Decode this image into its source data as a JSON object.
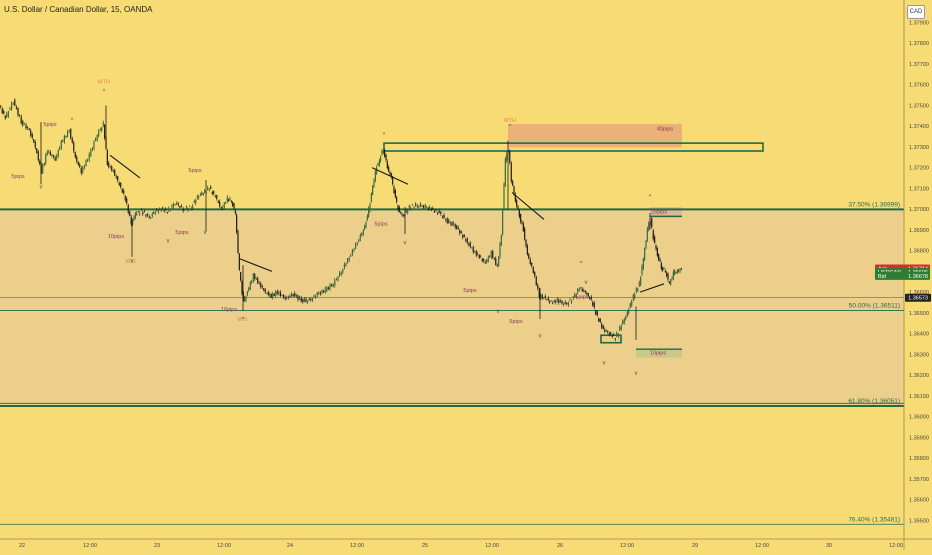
{
  "window": {
    "title": "U.S. Dollar / Canadian Dollar, 15, OANDA",
    "currency_button": "CAD"
  },
  "chart_data": {
    "type": "candlestick",
    "title": "U.S. Dollar / Canadian Dollar, 15, OANDA",
    "symbol": "USDCAD",
    "ylim": [
      1.3541,
      1.3795
    ],
    "price_ticks": [
      "1.37900",
      "1.37800",
      "1.37700",
      "1.37600",
      "1.37500",
      "1.37400",
      "1.37300",
      "1.37200",
      "1.37100",
      "1.37000",
      "1.36900",
      "1.36800",
      "1.36700",
      "1.36600",
      "1.36500",
      "1.36400",
      "1.36300",
      "1.36200",
      "1.36100",
      "1.36000",
      "1.35900",
      "1.35800",
      "1.35700",
      "1.35600",
      "1.35500"
    ],
    "time_ticks": [
      "22",
      "12:00",
      "23",
      "12:00",
      "24",
      "12:00",
      "25",
      "12:00",
      "26",
      "12:00",
      "29",
      "12:00",
      "30",
      "12:00"
    ],
    "fib_levels": [
      {
        "label": "37.50% (1.36999)",
        "price": 1.36999
      },
      {
        "label": "50.00% (1.36511)",
        "price": 1.36511
      },
      {
        "label": "61.80% (1.36051)",
        "price": 1.36051
      },
      {
        "label": "76.40% (1.35481)",
        "price": 1.35481
      }
    ],
    "price_flags": [
      {
        "name": "Ask",
        "value": "1.36714",
        "color": "#d32f2f"
      },
      {
        "name": "USDCAD",
        "value": "1.36696",
        "color": "#2e7d32"
      },
      {
        "name": "Bid",
        "value": "1.36678",
        "color": "#2e7d32"
      },
      {
        "name": "",
        "value": "1.36573",
        "color": "#222222"
      }
    ],
    "annotations": [
      {
        "text": "MTH",
        "color": "#e8843a"
      },
      {
        "text": "MTL",
        "color": "#e8843a"
      },
      {
        "text": "5pips",
        "color": "#8a3a55"
      },
      {
        "text": "10pips",
        "color": "#8a3a55"
      },
      {
        "text": "40pips",
        "color": "#8a3a55"
      },
      {
        "text": "25pips",
        "color": "#8a3a55"
      },
      {
        "text": "10pips",
        "color": "#8a3a55"
      }
    ],
    "colors": {
      "background": "#f7dc76",
      "zone": "#ebcf8a",
      "level_line": "#1e6b46",
      "candle": "#1a1a1a",
      "orange_box": "#e8a97a"
    }
  }
}
